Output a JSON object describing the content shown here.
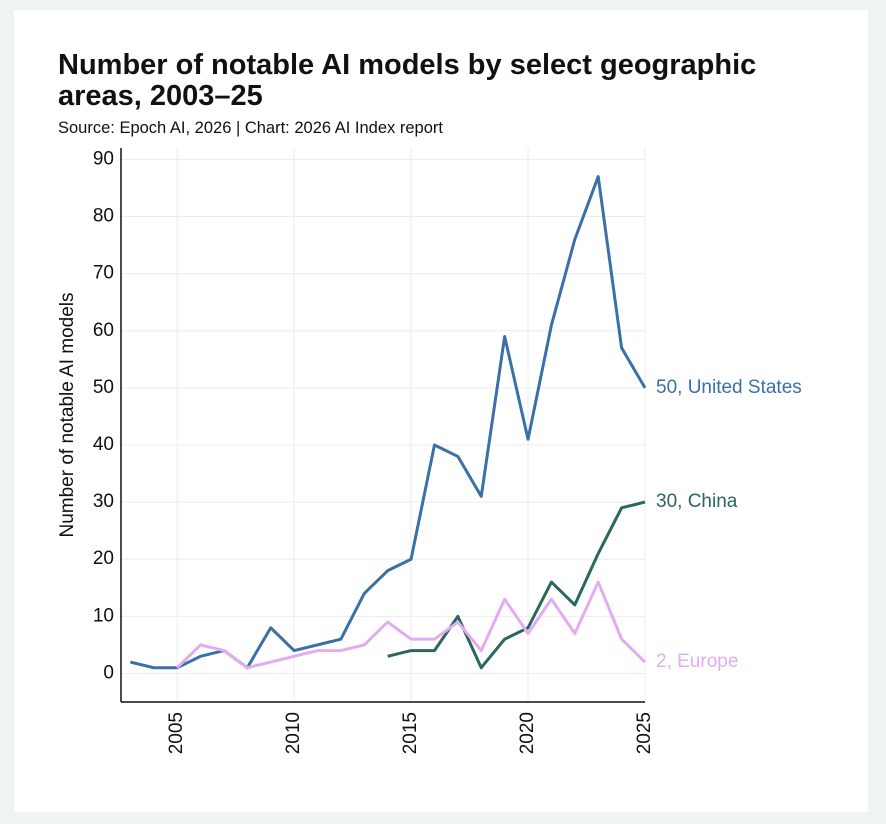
{
  "chart_data": {
    "type": "line",
    "title": "Number of notable AI models by select geographic areas, 2003–25",
    "subtitle": "Source: Epoch AI, 2026 | Chart: 2026 AI Index report",
    "y_label": "Number of notable AI models",
    "x": [
      2003,
      2004,
      2005,
      2006,
      2007,
      2008,
      2009,
      2010,
      2011,
      2012,
      2013,
      2014,
      2015,
      2016,
      2017,
      2018,
      2019,
      2020,
      2021,
      2022,
      2023,
      2024,
      2025
    ],
    "series": [
      {
        "name": "50, United States",
        "color": "#3a70a8",
        "values": [
          2,
          1,
          1,
          3,
          4,
          1,
          8,
          4,
          5,
          6,
          14,
          18,
          20,
          40,
          38,
          31,
          59,
          41,
          61,
          76,
          87,
          57,
          50
        ]
      },
      {
        "name": "30, China",
        "color": "#2b6661",
        "values": [
          null,
          null,
          null,
          null,
          null,
          null,
          null,
          null,
          null,
          null,
          null,
          3,
          4,
          4,
          10,
          1,
          6,
          8,
          16,
          12,
          21,
          29,
          30
        ]
      },
      {
        "name": "2, Europe",
        "color": "#e3acf1",
        "values": [
          null,
          null,
          1,
          5,
          4,
          1,
          2,
          3,
          4,
          4,
          5,
          9,
          6,
          6,
          9,
          4,
          13,
          7,
          13,
          7,
          16,
          6,
          2
        ]
      }
    ],
    "xlim": [
      2002.6,
      2025
    ],
    "ylim": [
      -5,
      92
    ],
    "xticks": [
      2005,
      2010,
      2015,
      2020,
      2025
    ],
    "yticks": [
      0,
      10,
      20,
      30,
      40,
      50,
      60,
      70,
      80,
      90
    ],
    "grid": true
  }
}
